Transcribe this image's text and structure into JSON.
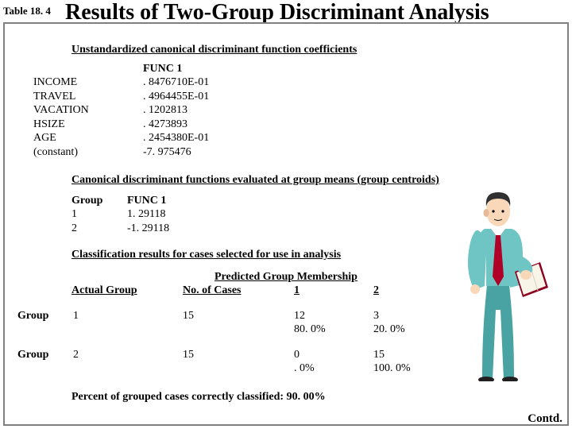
{
  "table_label": "Table 18. 4",
  "title": "Results of Two-Group Discriminant Analysis",
  "section1_heading": "Unstandardized canonical discriminant function coefficients",
  "func_header": "FUNC   1",
  "coefficients": {
    "r0_label": "INCOME",
    "r0_val": ". 8476710E-01",
    "r1_label": "TRAVEL",
    "r1_val": ". 4964455E-01",
    "r2_label": "VACATION",
    "r2_val": ". 1202813",
    "r3_label": "HSIZE",
    "r3_val": ". 4273893",
    "r4_label": "AGE",
    "r4_val": ". 2454380E-01",
    "r5_label": "(constant)",
    "r5_val": "-7. 975476"
  },
  "section2_heading": "Canonical discriminant functions evaluated at group means (group centroids)",
  "centroids": {
    "head_group": "Group",
    "head_func": "FUNC   1",
    "g1": "1",
    "v1": " 1. 29118",
    "g2": "2",
    "v2": "-1. 29118"
  },
  "section3_heading": "Classification results for cases selected for use in analysis",
  "class_headers": {
    "predicted": "Predicted Group Membership",
    "actual": "Actual Group",
    "ncases": "No. of Cases",
    "one": "1",
    "two": "2"
  },
  "group_label": "Group",
  "class_rows": {
    "r1_actual": "1",
    "r1_n": "15",
    "r1_one_n": "12",
    "r1_one_p": "80. 0%",
    "r1_two_n": "3",
    "r1_two_p": "20. 0%",
    "r2_actual": "2",
    "r2_n": "15",
    "r2_one_n": "0",
    "r2_one_p": ". 0%",
    "r2_two_n": "15",
    "r2_two_p": "100. 0%"
  },
  "percent_line": "Percent of grouped cases correctly classified:  90. 00%",
  "contd": "Contd.",
  "colors": {
    "suit": "#6fc4c4",
    "suit_shade": "#4aa3a3",
    "skin": "#f8d8b8",
    "hair": "#303030",
    "tie": "#b00028",
    "book": "#8a0020",
    "page": "#f8f4e8",
    "ear": "#e8b898"
  }
}
